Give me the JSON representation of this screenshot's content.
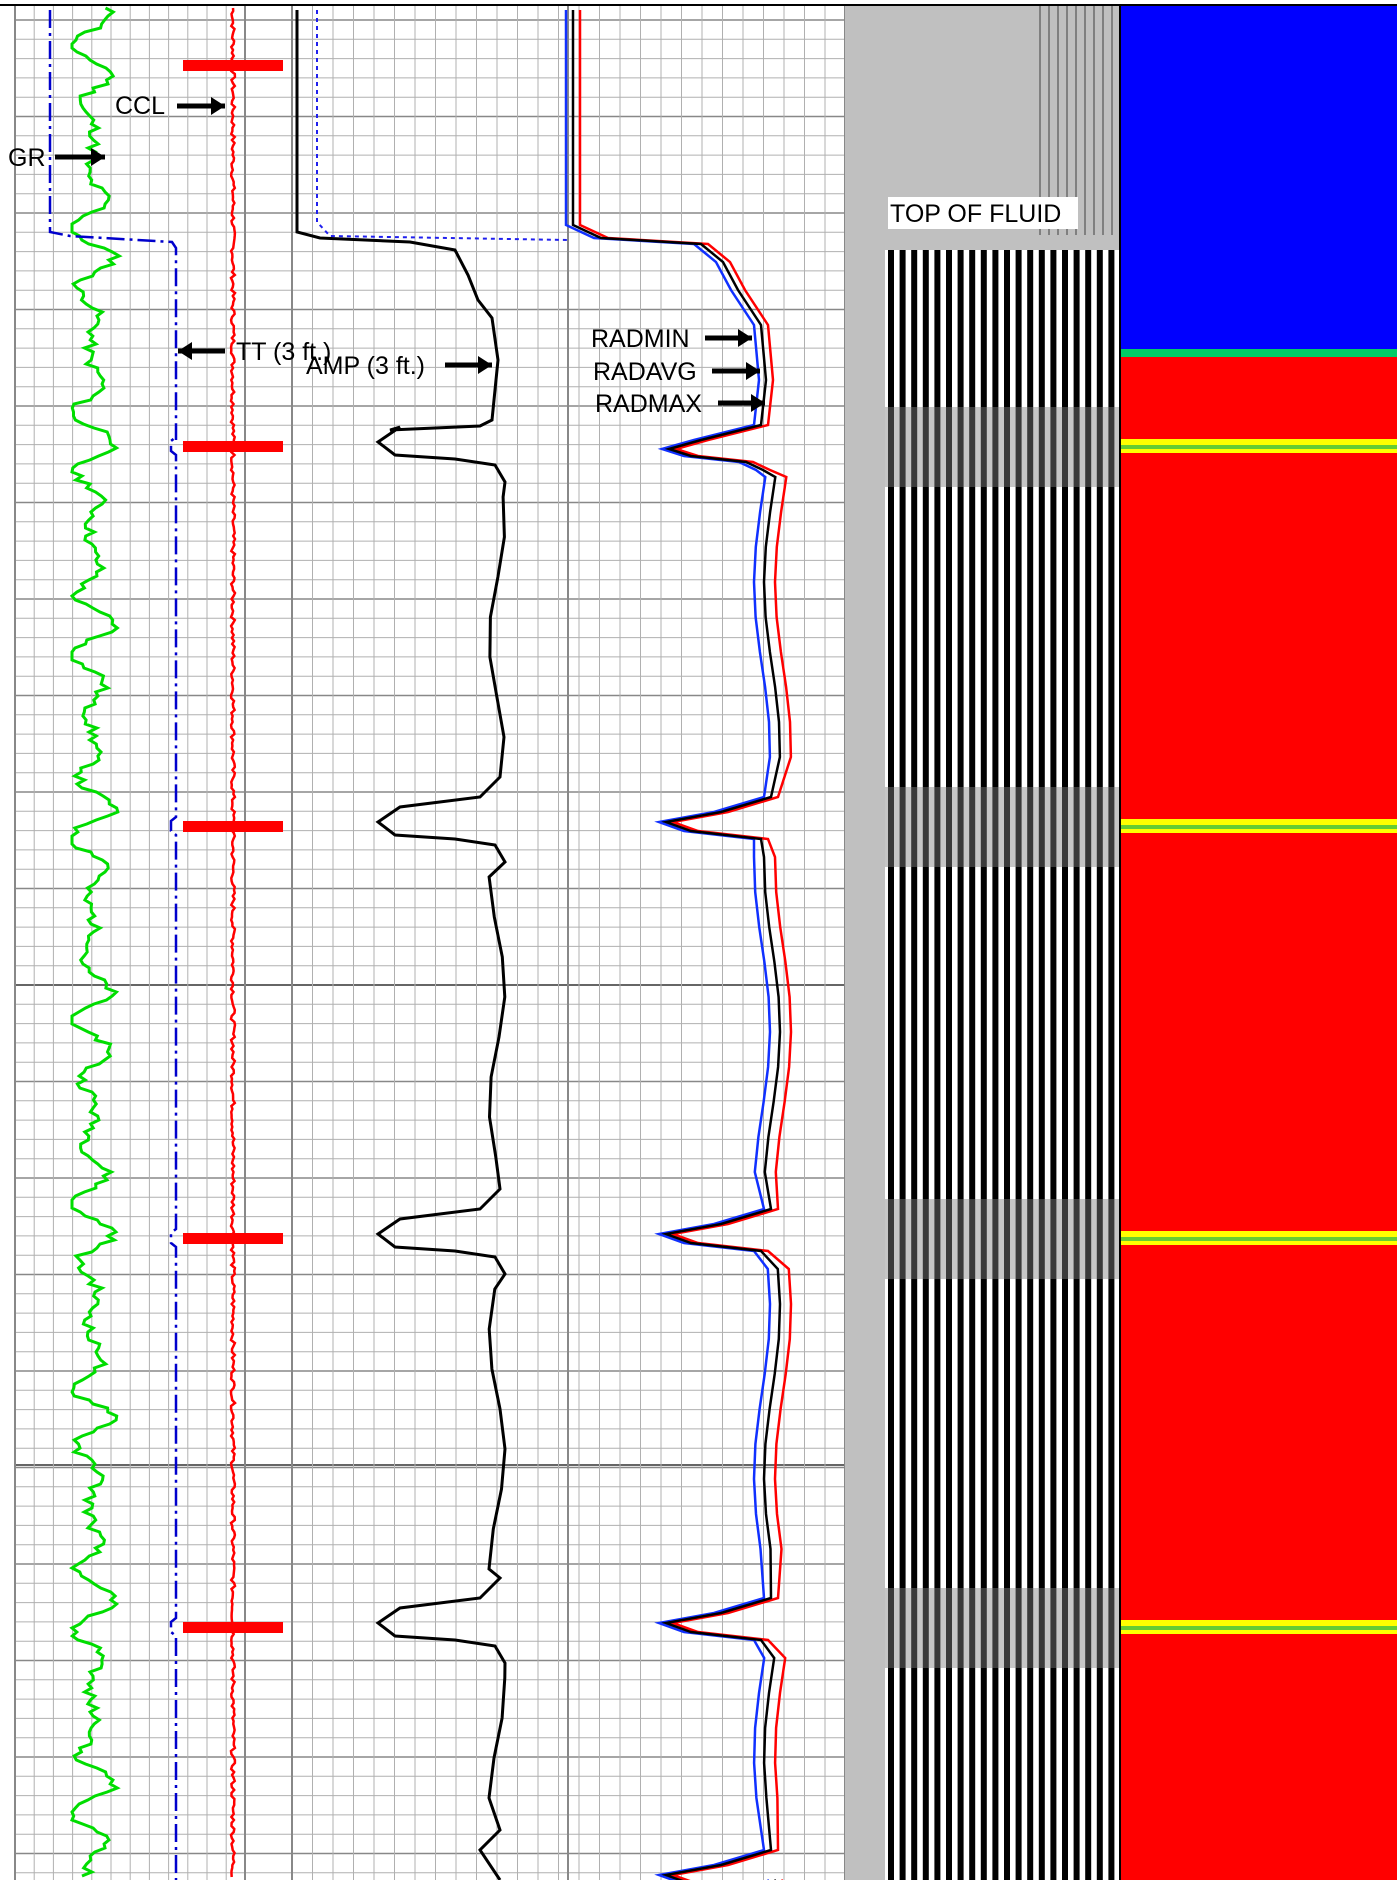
{
  "chart_data": {
    "type": "line",
    "title": "",
    "curve_labels": {
      "gr": "GR",
      "ccl": "CCL",
      "tt": "TT (3 ft.)",
      "amp": "AMP (3 ft.)",
      "radmin": "RADMIN",
      "radavg": "RADAVG",
      "radmax": "RADMAX",
      "top_of_fluid": "TOP OF FLUID"
    },
    "collar_depths_fraction": [
      0.035,
      0.238,
      0.44,
      0.659,
      0.866
    ],
    "top_of_fluid_fraction": 0.127,
    "grid": true,
    "colors": {
      "gr": "#00dd00",
      "ccl": "#ff0000",
      "tt": "#0000cc",
      "amp": "#000000",
      "radmin": "#1030ff",
      "radavg": "#000000",
      "radmax": "#ff0000",
      "vdl_background": "#c0c0c0",
      "map_gas": "#0000ff",
      "map_fluid": "#ff0000",
      "map_band": "#ffff00"
    }
  }
}
